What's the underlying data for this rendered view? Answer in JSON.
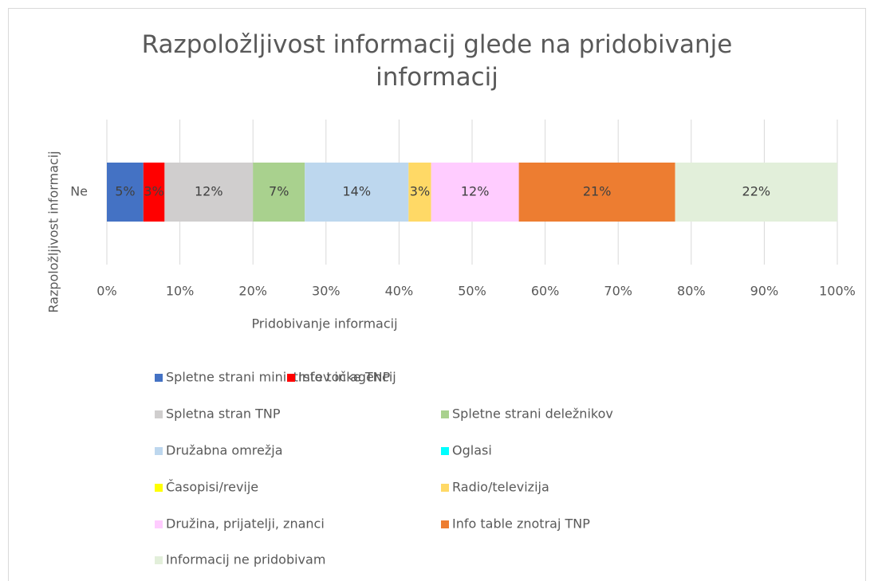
{
  "chart_data": {
    "type": "stacked_bar_horizontal",
    "title": "Razpoložljivost informacij glede na pridobivanje informacij",
    "x_label": "Pridobivanje informacij",
    "y_label": "Razpoložljivost informacij",
    "categories": [
      "Ne"
    ],
    "xlim": [
      0,
      100
    ],
    "xticks": [
      {
        "value": 0,
        "label": "0%"
      },
      {
        "value": 10,
        "label": "10%"
      },
      {
        "value": 20,
        "label": "20%"
      },
      {
        "value": 30,
        "label": "30%"
      },
      {
        "value": 40,
        "label": "40%"
      },
      {
        "value": 50,
        "label": "50%"
      },
      {
        "value": 60,
        "label": "60%"
      },
      {
        "value": 70,
        "label": "70%"
      },
      {
        "value": 80,
        "label": "80%"
      },
      {
        "value": 90,
        "label": "90%"
      },
      {
        "value": 100,
        "label": "100%"
      }
    ],
    "grid": true,
    "legend": "bottom",
    "series": [
      {
        "name": "Spletne strani ministrstev in agencij",
        "color": "#4472c4",
        "values": [
          5.0
        ],
        "value_labels": [
          "5%"
        ]
      },
      {
        "name": "Info točke TNP",
        "color": "#ff0000",
        "values": [
          2.9
        ],
        "value_labels": [
          "3%"
        ]
      },
      {
        "name": "Spletna stran TNP",
        "color": "#d0cece",
        "values": [
          12.1
        ],
        "value_labels": [
          "12%"
        ]
      },
      {
        "name": "Spletne strani deležnikov",
        "color": "#a9d18e",
        "values": [
          7.1
        ],
        "value_labels": [
          "7%"
        ]
      },
      {
        "name": "Družabna omrežja",
        "color": "#bdd7ee",
        "values": [
          14.2
        ],
        "value_labels": [
          "14%"
        ]
      },
      {
        "name": "Oglasi",
        "color": "#00ffff",
        "values": [
          0
        ]
      },
      {
        "name": "Časopisi/revije",
        "color": "#ffff00",
        "values": [
          0
        ]
      },
      {
        "name": "Radio/televizija",
        "color": "#ffd966",
        "values": [
          3.1
        ],
        "value_labels": [
          "3%"
        ]
      },
      {
        "name": "Družina, prijatelji, znanci",
        "color": "#ffccff",
        "values": [
          12.0
        ],
        "value_labels": [
          "12%"
        ]
      },
      {
        "name": "Info table znotraj TNP",
        "color": "#ed7d31",
        "values": [
          21.4
        ],
        "value_labels": [
          "21%"
        ]
      },
      {
        "name": "Informacij ne pridobivam",
        "color": "#e2efda",
        "values": [
          22.2
        ],
        "value_labels": [
          "22%"
        ]
      }
    ]
  }
}
